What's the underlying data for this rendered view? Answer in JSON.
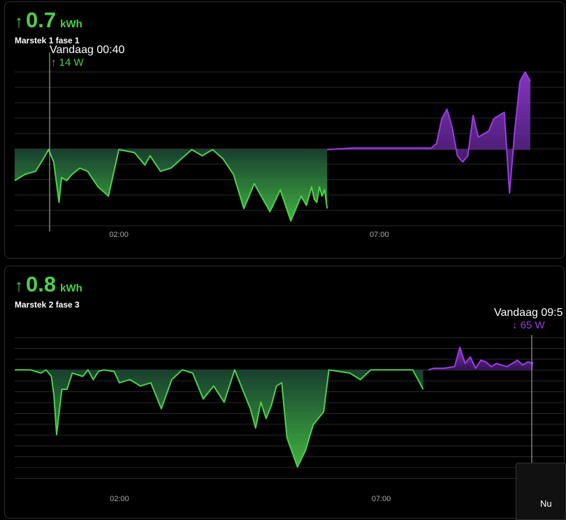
{
  "cards": [
    {
      "arrow": "↑",
      "value": "0.7",
      "unit": "kWh",
      "name": "Marstek 1 fase 1",
      "tooltip": {
        "time": "Vandaag 00:40",
        "arrow": "↑",
        "power": "14 W"
      }
    },
    {
      "arrow": "↑",
      "value": "0.8",
      "unit": "kWh",
      "name": "Marstek 2 fase 3",
      "tooltip": {
        "time": "Vandaag 09:5",
        "arrow": "↓",
        "power": "65 W"
      }
    }
  ],
  "nu_label": "Nu",
  "colors": {
    "green": "#4cd14c",
    "purple": "#9b3de0",
    "grid": "#2a2a2a"
  },
  "chart_data": [
    {
      "type": "area",
      "title": "Marstek 1 fase 1",
      "x_ticks": [
        "02:00",
        "07:00"
      ],
      "x_tick_hours": [
        2,
        7
      ],
      "x_range_hours": [
        0,
        9.9
      ],
      "y_range": [
        -250,
        250
      ],
      "series": [
        {
          "color": "#4cd14c",
          "x": [
            0,
            0.2,
            0.4,
            0.55,
            0.65,
            0.75,
            0.85,
            0.9,
            1,
            1.1,
            1.25,
            1.4,
            1.6,
            1.8,
            2,
            2.3,
            2.5,
            2.6,
            2.8,
            3,
            3.2,
            3.4,
            3.6,
            3.8,
            4,
            4.2,
            4.4,
            4.6,
            4.9,
            5.1,
            5.3,
            5.5,
            5.6,
            5.7,
            5.75,
            5.8,
            5.85,
            5.9,
            5.95,
            6.0
          ],
          "y": [
            -100,
            -80,
            -70,
            -30,
            0,
            -40,
            -170,
            -90,
            -100,
            -80,
            -60,
            -70,
            -120,
            -150,
            0,
            -10,
            -50,
            -20,
            -70,
            -60,
            -30,
            0,
            -20,
            0,
            -30,
            -80,
            -190,
            -110,
            -200,
            -130,
            -230,
            -150,
            -180,
            -120,
            -160,
            -170,
            -120,
            -150,
            -130,
            -190
          ]
        },
        {
          "color": "#9b3de0",
          "x": [
            6.0,
            6.5,
            7,
            7.5,
            8,
            8.1,
            8.2,
            8.3,
            8.4,
            8.5,
            8.6,
            8.7,
            8.8,
            8.9,
            9.1,
            9.2,
            9.3,
            9.4,
            9.5,
            9.6,
            9.7,
            9.8,
            9.9
          ],
          "y": [
            0,
            5,
            5,
            5,
            5,
            20,
            100,
            130,
            70,
            -20,
            -40,
            -20,
            110,
            40,
            60,
            100,
            110,
            120,
            -140,
            60,
            220,
            250,
            220
          ]
        }
      ]
    },
    {
      "type": "area",
      "title": "Marstek 2 fase 3",
      "x_ticks": [
        "02:00",
        "07:00"
      ],
      "x_tick_hours": [
        2,
        7
      ],
      "x_range_hours": [
        0,
        9.9
      ],
      "y_range": [
        -350,
        100
      ],
      "series": [
        {
          "color": "#4cd14c",
          "x": [
            0,
            0.3,
            0.5,
            0.6,
            0.7,
            0.75,
            0.8,
            0.9,
            1,
            1.1,
            1.3,
            1.4,
            1.5,
            1.6,
            1.7,
            1.9,
            2,
            2.2,
            2.4,
            2.6,
            2.8,
            3,
            3.2,
            3.4,
            3.6,
            3.8,
            4,
            4.2,
            4.4,
            4.5,
            4.6,
            4.7,
            4.8,
            4.9,
            5.0,
            5.1,
            5.2,
            5.4,
            5.55,
            5.7,
            5.9,
            6.0,
            6.2,
            6.4,
            6.6,
            6.8,
            7.0,
            7.2,
            7.6,
            7.8
          ],
          "y": [
            0,
            0,
            -10,
            0,
            -20,
            -80,
            -200,
            -60,
            -60,
            -10,
            -20,
            0,
            -30,
            -5,
            0,
            -5,
            -40,
            -30,
            -50,
            -40,
            -120,
            -30,
            0,
            -10,
            -90,
            -50,
            -100,
            0,
            -80,
            -120,
            -180,
            -100,
            -150,
            -110,
            -50,
            -40,
            -210,
            -300,
            -250,
            -170,
            -130,
            0,
            -5,
            -10,
            -30,
            0,
            0,
            0,
            0,
            -60
          ]
        },
        {
          "color": "#9b3de0",
          "x": [
            7.9,
            8.0,
            8.2,
            8.4,
            8.5,
            8.6,
            8.7,
            8.8,
            8.9,
            9.0,
            9.1,
            9.2,
            9.3,
            9.4,
            9.5,
            9.6,
            9.7,
            9.8,
            9.9
          ],
          "y": [
            0,
            5,
            5,
            10,
            70,
            20,
            40,
            5,
            30,
            25,
            10,
            20,
            15,
            10,
            20,
            30,
            15,
            25,
            20
          ]
        }
      ]
    }
  ]
}
